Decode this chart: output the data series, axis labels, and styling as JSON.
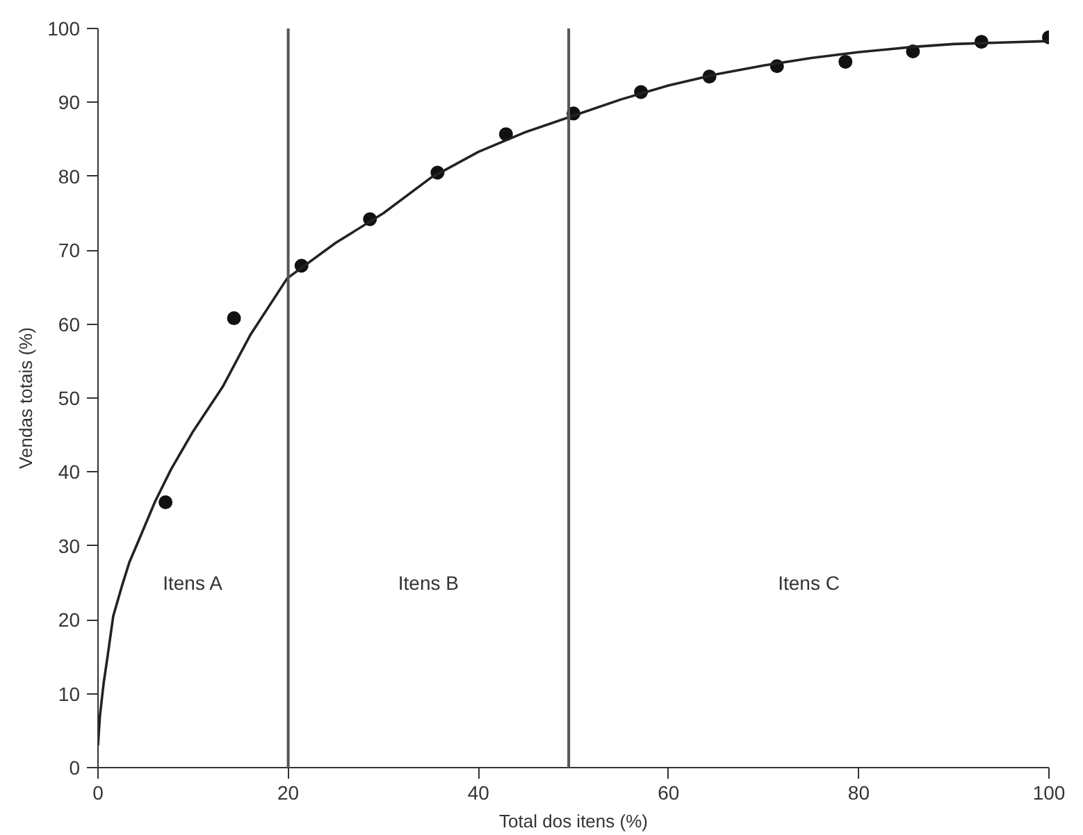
{
  "chart_data": {
    "type": "scatter",
    "xlabel": "Total dos itens (%)",
    "ylabel": "Vendas totais (%)",
    "x": [
      7.1,
      14.3,
      21.4,
      28.6,
      35.7,
      42.9,
      50,
      57.1,
      64.3,
      71.4,
      78.6,
      85.7,
      92.9,
      100
    ],
    "series": [
      {
        "color": "#111111",
        "marker": "circle",
        "values": [
          35.9,
          60.8,
          67.9,
          74.2,
          80.5,
          85.7,
          88.5,
          91.4,
          93.5,
          94.9,
          95.5,
          96.9,
          98.2,
          98.8
        ]
      },
      {
        "type": "line",
        "color": "#222222",
        "line_style": "solid",
        "x": [
          0,
          0.2,
          0.6,
          1,
          1.6,
          2.5,
          3.3,
          4.3,
          6,
          7.7,
          10,
          13.1,
          16,
          19.9,
          25,
          30,
          35,
          40,
          45,
          50,
          55,
          60,
          65,
          70,
          75,
          80,
          85.6,
          90,
          95,
          100
        ],
        "values": [
          3,
          7,
          11.5,
          15,
          20.5,
          24.5,
          27.8,
          30.8,
          36,
          40.4,
          45.5,
          51.5,
          58.5,
          66.2,
          71,
          75,
          79.8,
          83.3,
          86,
          88.2,
          90.4,
          92.3,
          93.8,
          95,
          96,
          96.8,
          97.5,
          97.9,
          98.1,
          98.3
        ]
      }
    ],
    "ref_lines": [
      {
        "axis": "x",
        "value": 20,
        "color": "#555555"
      },
      {
        "axis": "x",
        "value": 49.5,
        "color": "#555555"
      }
    ],
    "annotations": [
      "Itens A",
      "Itens B",
      "Itens C"
    ],
    "xlim": [
      0,
      100
    ],
    "ylim": [
      0,
      100
    ],
    "xticks": [
      0,
      20,
      40,
      60,
      80,
      100
    ],
    "yticks": [
      0,
      10,
      20,
      30,
      40,
      50,
      60,
      70,
      80,
      90,
      100
    ],
    "grid": false
  }
}
